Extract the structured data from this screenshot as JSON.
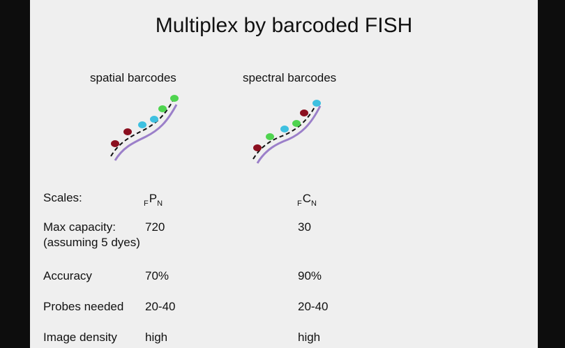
{
  "title": "Multiplex by barcoded FISH",
  "diagrams": [
    {
      "label": "spatial barcodes",
      "dots": [
        "#8b0f1f",
        "#8b0f1f",
        "#3ec0e0",
        "#3ec0e0",
        "#4fd44f",
        "#4fd44f"
      ]
    },
    {
      "label": "spectral barcodes",
      "dots": [
        "#8b0f1f",
        "#4fd44f",
        "#3ec0e0",
        "#4fd44f",
        "#8b0f1f",
        "#3ec0e0"
      ]
    }
  ],
  "colors": {
    "probe_line": "#9b7fc9",
    "background": "#efefef"
  },
  "table": {
    "rows": [
      {
        "label": "Scales:",
        "spatial": {
          "prefix_sub": "F",
          "main": "P",
          "suffix_sub": "N"
        },
        "spectral": {
          "prefix_sub": "F",
          "main": "C",
          "suffix_sub": "N"
        }
      },
      {
        "label": "Max capacity:",
        "label_line2": "(assuming 5 dyes)",
        "spatial": "720",
        "spectral": "30"
      },
      {
        "label": "Accuracy",
        "spatial": "70%",
        "spectral": "90%"
      },
      {
        "label": "Probes needed",
        "spatial": "20-40",
        "spectral": "20-40"
      },
      {
        "label": "Image density",
        "spatial": "high",
        "spectral": "high"
      }
    ]
  }
}
